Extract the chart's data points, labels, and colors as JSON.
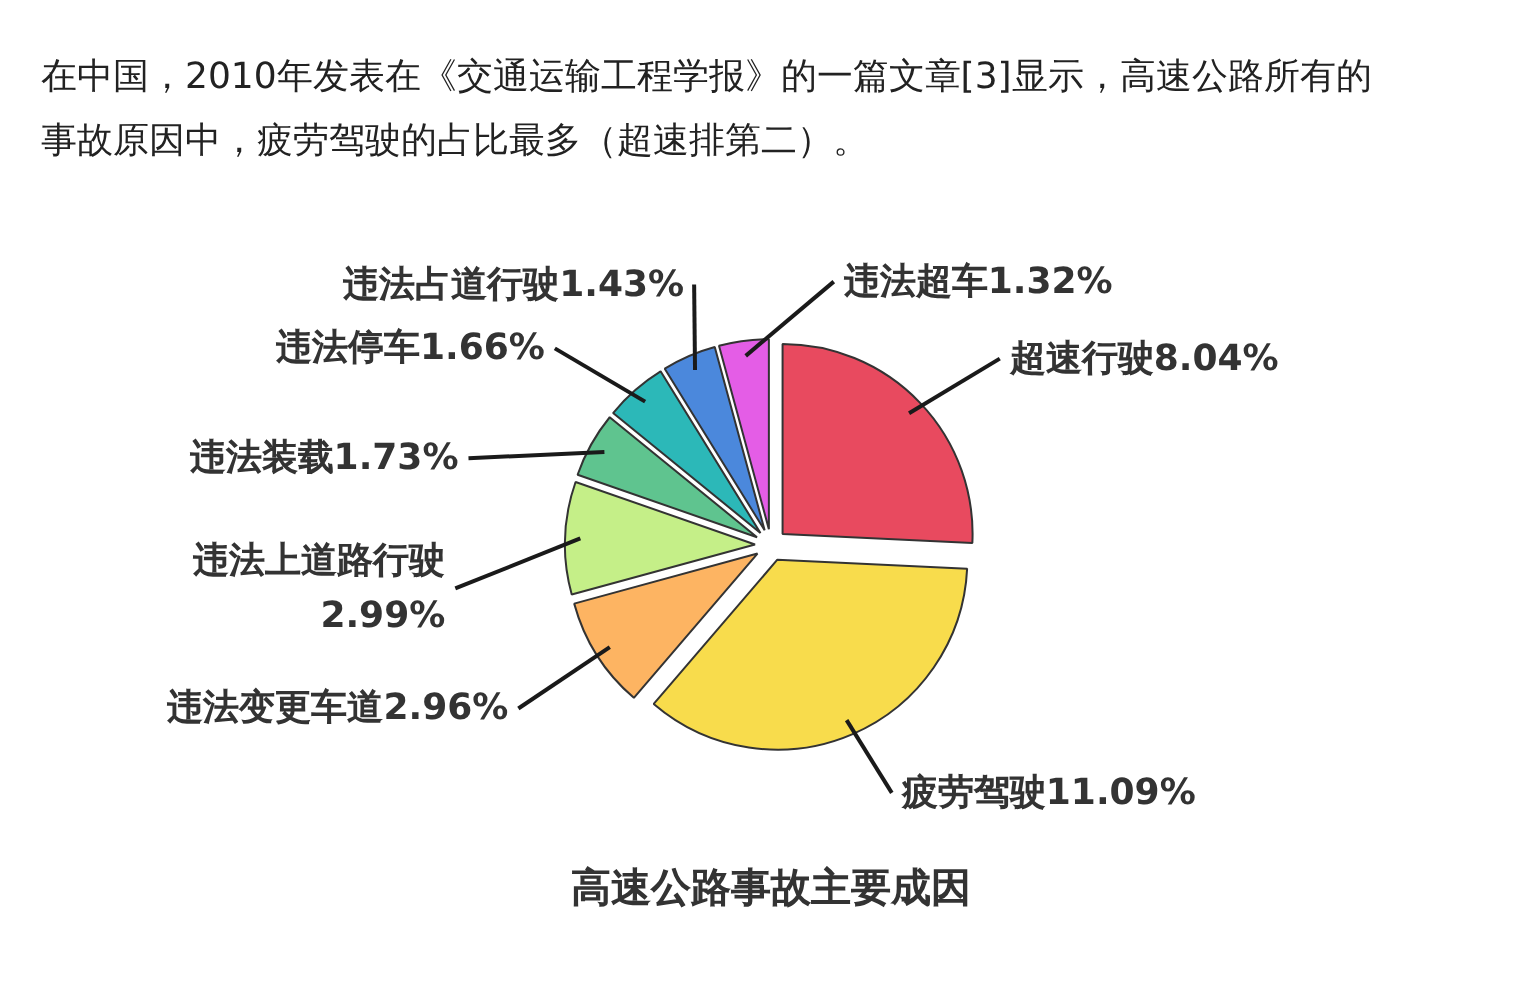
{
  "chart_data": {
    "type": "pie",
    "title": "高速公路事故主要成因",
    "annotations": [
      "在中国，2010年发表在《交通运输工程学报》的一篇文章[3]显示，高速公路所有的事故原因中，疲劳驾驶的占比最多（超速排第二）。"
    ],
    "categories": [
      "超速行驶",
      "疲劳驾驶",
      "违法变更车道",
      "违法上道路行驶",
      "违法装载",
      "违法停车",
      "违法占道行驶",
      "违法超车"
    ],
    "values": [
      8.04,
      11.09,
      2.96,
      2.99,
      1.73,
      1.66,
      1.43,
      1.32
    ],
    "value_labels": [
      "8.04%",
      "11.09%",
      "2.96%",
      "2.99%",
      "1.73%",
      "1.66%",
      "1.43%",
      "1.32%"
    ],
    "colors": [
      "#e84a5f",
      "#f8dc4c",
      "#fdb462",
      "#c5ef88",
      "#5fc48f",
      "#2cb8b8",
      "#4b88dc",
      "#e45de6"
    ]
  }
}
